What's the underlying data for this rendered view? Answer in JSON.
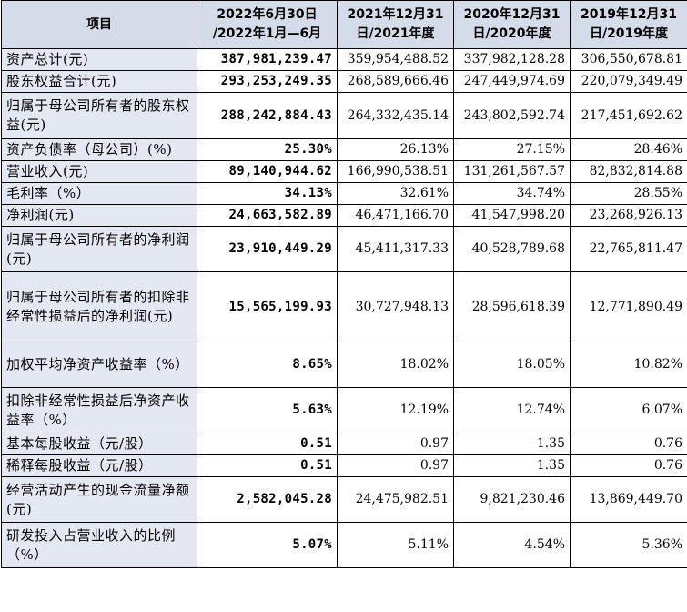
{
  "headers": [
    "项目",
    "2022年6月30日\n/2022年1月—6月",
    "2021年12月31\n日/2021年度",
    "2020年12月31\n日/2020年度",
    "2019年12月31\n日/2019年度"
  ],
  "rows": [
    {
      "label": "资产总计(元)",
      "values": [
        "387,981,239.47",
        "359,954,488.52",
        "337,982,128.28",
        "306,550,678.81"
      ]
    },
    {
      "label": "股东权益合计(元)",
      "values": [
        "293,253,249.35",
        "268,589,666.46",
        "247,449,974.69",
        "220,079,349.49"
      ]
    },
    {
      "label": "归属于母公司所有者的股东权益(元)",
      "values": [
        "288,242,884.43",
        "264,332,435.14",
        "243,802,592.74",
        "217,451,692.62"
      ]
    },
    {
      "label": "资产负债率（母公司）(%)",
      "values": [
        "25.30%",
        "26.13%",
        "27.15%",
        "28.46%"
      ]
    },
    {
      "label": "营业收入(元)",
      "values": [
        "89,140,944.62",
        "166,990,538.51",
        "131,261,567.57",
        "82,832,814.88"
      ]
    },
    {
      "label": "毛利率（%）",
      "values": [
        "34.13%",
        "32.61%",
        "34.74%",
        "28.55%"
      ]
    },
    {
      "label": "净利润(元)",
      "values": [
        "24,663,582.89",
        "46,471,166.70",
        "41,547,998.20",
        "23,268,926.13"
      ]
    },
    {
      "label": "归属于母公司所有者的净利润(元)",
      "values": [
        "23,910,449.29",
        "45,411,317.33",
        "40,528,789.68",
        "22,765,811.47"
      ]
    },
    {
      "label": "归属于母公司所有者的扣除非经常性损益后的净利润(元)",
      "values": [
        "15,565,199.93",
        "30,727,948.13",
        "28,596,618.39",
        "12,771,890.49"
      ]
    },
    {
      "label": "加权平均净资产收益率（%）",
      "values": [
        "8.65%",
        "18.02%",
        "18.05%",
        "10.82%"
      ]
    },
    {
      "label": "扣除非经常性损益后净资产收益率（%）",
      "values": [
        "5.63%",
        "12.19%",
        "12.74%",
        "6.07%"
      ]
    },
    {
      "label": "基本每股收益（元/股）",
      "values": [
        "0.51",
        "0.97",
        "1.35",
        "0.76"
      ]
    },
    {
      "label": "稀释每股收益（元/股）",
      "values": [
        "0.51",
        "0.97",
        "1.35",
        "0.76"
      ]
    },
    {
      "label": "经营活动产生的现金流量净额(元)",
      "values": [
        "2,582,045.28",
        "24,475,982.51",
        "9,821,230.46",
        "13,869,449.70"
      ]
    },
    {
      "label": "研发投入占营业收入的比例（%）",
      "values": [
        "5.07%",
        "5.11%",
        "4.54%",
        "5.36%"
      ]
    }
  ]
}
